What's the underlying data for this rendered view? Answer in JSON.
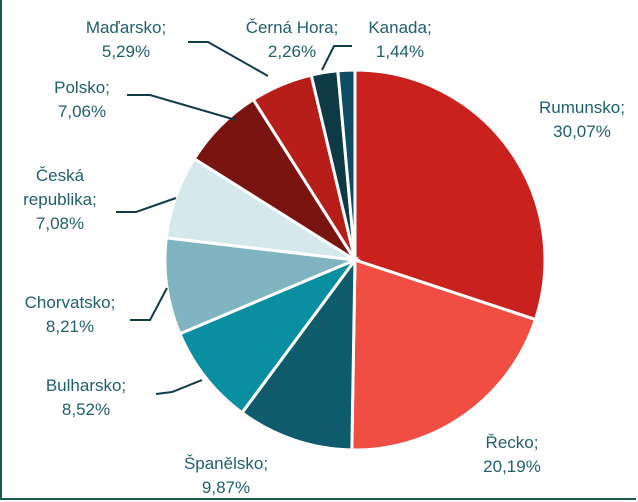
{
  "chart_data": {
    "type": "pie",
    "categories": [
      "Rumunsko;",
      "Řecko;",
      "Španělsko;",
      "Bulharsko;",
      "Chorvatsko;",
      "Česká republika;",
      "Polsko;",
      "Maďarsko;",
      "Černá Hora;",
      "Kanada;"
    ],
    "values": [
      30.07,
      20.19,
      9.87,
      8.52,
      8.21,
      7.08,
      7.06,
      5.29,
      2.26,
      1.44
    ],
    "value_labels": [
      "30,07%",
      "20,19%",
      "9,87%",
      "8,52%",
      "8,21%",
      "7,08%",
      "7,06%",
      "5,29%",
      "2,26%",
      "1,44%"
    ],
    "colors": [
      "#c9211e",
      "#f04e43",
      "#0e5c6b",
      "#0a8fa0",
      "#7fb4c0",
      "#d5e8ec",
      "#7a1410",
      "#b71e19",
      "#0e3a45",
      "#0e4d64"
    ]
  }
}
